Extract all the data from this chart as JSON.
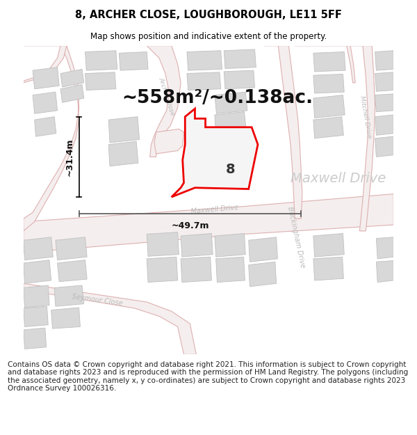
{
  "title": "8, ARCHER CLOSE, LOUGHBOROUGH, LE11 5FF",
  "subtitle": "Map shows position and indicative extent of the property.",
  "area_text": "~558m²/~0.138ac.",
  "label_8": "8",
  "dim_height": "~31.4m",
  "dim_width": "~49.7m",
  "footer": "Contains OS data © Crown copyright and database right 2021. This information is subject to Crown copyright and database rights 2023 and is reproduced with the permission of HM Land Registry. The polygons (including the associated geometry, namely x, y co-ordinates) are subject to Crown copyright and database rights 2023 Ordnance Survey 100026316.",
  "map_bg": "#f2f2f2",
  "road_fill": "#f7e8e8",
  "road_edge": "#e8a0a0",
  "road_center": "#e0c0c0",
  "building_fill": "#d8d8d8",
  "building_edge": "#c0c0c0",
  "plot_color": "#ee0000",
  "plot_fill": "#f5f5f5",
  "dim_color": "#444444",
  "road_label_color": "#aaaaaa",
  "big_road_label_color": "#bbbbbb",
  "title_fontsize": 10.5,
  "subtitle_fontsize": 8.5,
  "area_fontsize": 19,
  "footer_fontsize": 7.5,
  "label8_fontsize": 14
}
